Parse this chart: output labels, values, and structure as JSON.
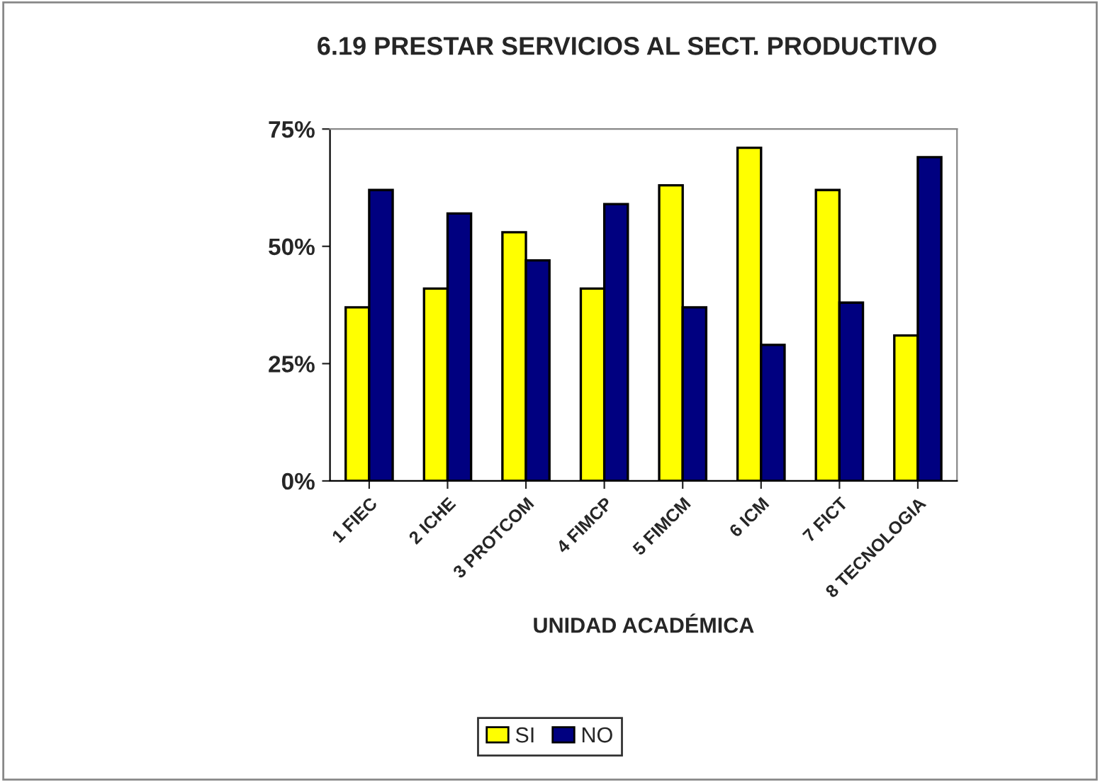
{
  "chart_data": {
    "type": "bar",
    "title": "6.19 PRESTAR SERVICIOS AL SECT. PRODUCTIVO",
    "xlabel": "UNIDAD ACADÉMICA",
    "categories": [
      "1 FIEC",
      "2 ICHE",
      "3 PROTCOM",
      "4 FIMCP",
      "5 FIMCM",
      "6 ICM",
      "7 FICT",
      "8 TECNOLOGIA"
    ],
    "series": [
      {
        "name": "SI",
        "color": "#ffff00",
        "values": [
          37,
          41,
          53,
          41,
          63,
          71,
          62,
          31
        ]
      },
      {
        "name": "NO",
        "color": "#000080",
        "values": [
          62,
          57,
          47,
          59,
          37,
          29,
          38,
          69
        ]
      }
    ],
    "ylim": [
      0,
      75
    ],
    "yticks": [
      {
        "value": 0,
        "label": "0%"
      },
      {
        "value": 25,
        "label": "25%"
      },
      {
        "value": 50,
        "label": "50%"
      },
      {
        "value": 75,
        "label": "75%"
      }
    ],
    "grid": false,
    "legend": "bottom"
  }
}
